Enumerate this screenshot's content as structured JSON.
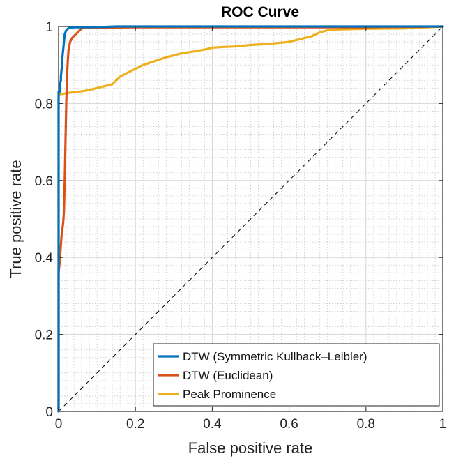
{
  "chart_data": {
    "type": "line",
    "title": "ROC Curve",
    "xlabel": "False positive rate",
    "ylabel": "True positive rate",
    "xlim": [
      0,
      1
    ],
    "ylim": [
      0,
      1
    ],
    "xticks": [
      0,
      0.2,
      0.4,
      0.6,
      0.8,
      1
    ],
    "yticks": [
      0,
      0.2,
      0.4,
      0.6,
      0.8,
      1
    ],
    "xtick_labels": [
      "0",
      "0.2",
      "0.4",
      "0.6",
      "0.8",
      "1"
    ],
    "ytick_labels": [
      "0",
      "0.2",
      "0.4",
      "0.6",
      "0.8",
      "1"
    ],
    "grid": true,
    "minor_grid": true,
    "legend_position": "bottom-right",
    "series": [
      {
        "name": "DTW (Symmetric Kullback–Leibler)",
        "color": "#0072BD",
        "x": [
          0,
          0,
          0.003,
          0.003,
          0.006,
          0.006,
          0.008,
          0.01,
          0.012,
          0.014,
          0.016,
          0.02,
          0.025,
          0.03,
          0.04,
          0.05,
          0.12,
          0.15,
          0.37,
          1.0
        ],
        "y": [
          0,
          0.83,
          0.83,
          0.85,
          0.86,
          0.87,
          0.89,
          0.92,
          0.94,
          0.96,
          0.98,
          0.99,
          0.995,
          0.997,
          0.998,
          0.998,
          0.999,
          1.0,
          1.0,
          1.0
        ]
      },
      {
        "name": "DTW (Euclidean)",
        "color": "#D95319",
        "x": [
          0,
          0,
          0.003,
          0.005,
          0.008,
          0.012,
          0.014,
          0.016,
          0.018,
          0.02,
          0.022,
          0.024,
          0.026,
          0.03,
          0.035,
          0.04,
          0.045,
          0.05,
          0.055,
          0.06,
          0.08,
          0.2,
          0.5,
          0.8,
          0.85,
          0.9,
          1.0
        ],
        "y": [
          0,
          0.36,
          0.39,
          0.42,
          0.46,
          0.49,
          0.52,
          0.6,
          0.7,
          0.8,
          0.87,
          0.91,
          0.94,
          0.96,
          0.97,
          0.975,
          0.98,
          0.985,
          0.99,
          0.995,
          0.997,
          0.998,
          0.998,
          0.998,
          0.999,
          0.999,
          1.0
        ]
      },
      {
        "name": "Peak Prominence",
        "color": "#EDB120",
        "x": [
          0,
          0,
          0.005,
          0.01,
          0.03,
          0.05,
          0.08,
          0.1,
          0.12,
          0.14,
          0.16,
          0.18,
          0.2,
          0.22,
          0.25,
          0.28,
          0.3,
          0.32,
          0.35,
          0.38,
          0.4,
          0.43,
          0.46,
          0.5,
          0.55,
          0.6,
          0.62,
          0.64,
          0.66,
          0.68,
          0.7,
          0.72,
          0.8,
          0.9,
          1.0
        ],
        "y": [
          0,
          0.82,
          0.825,
          0.825,
          0.828,
          0.83,
          0.835,
          0.84,
          0.845,
          0.85,
          0.87,
          0.88,
          0.89,
          0.9,
          0.91,
          0.92,
          0.925,
          0.93,
          0.935,
          0.94,
          0.945,
          0.947,
          0.948,
          0.952,
          0.955,
          0.96,
          0.965,
          0.97,
          0.975,
          0.985,
          0.99,
          0.992,
          0.994,
          0.995,
          1.0
        ]
      }
    ],
    "reference_line": {
      "name": "chance",
      "x": [
        0,
        1
      ],
      "y": [
        0,
        1
      ],
      "style": "dashed",
      "color": "#000000"
    }
  }
}
